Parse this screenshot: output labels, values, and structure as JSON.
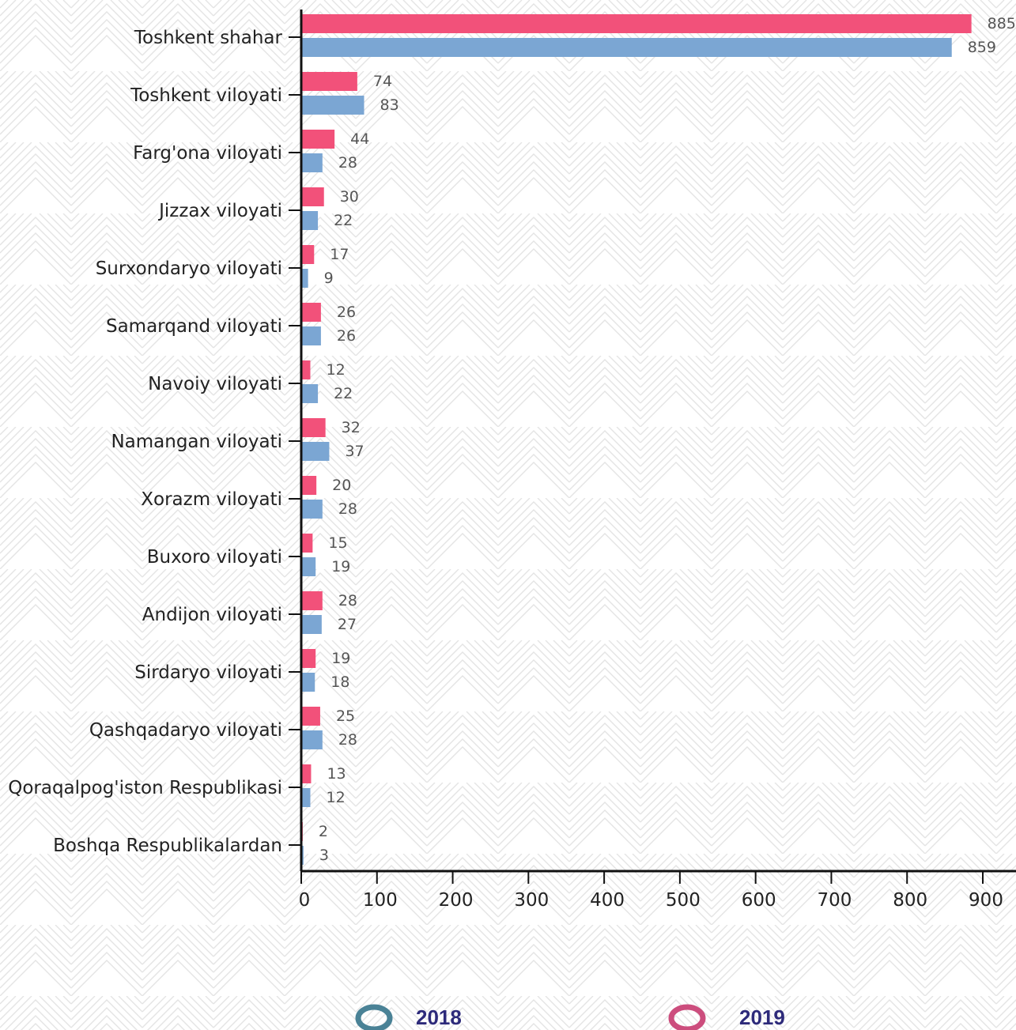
{
  "chart_data": {
    "type": "bar",
    "orientation": "horizontal",
    "categories": [
      "Toshkent shahar",
      "Toshkent viloyati",
      "Farg'ona viloyati",
      "Jizzax viloyati",
      "Surxondaryo viloyati",
      "Samarqand viloyati",
      "Navoiy viloyati",
      "Namangan viloyati",
      "Xorazm viloyati",
      "Buxoro viloyati",
      "Andijon viloyati",
      "Sirdaryo viloyati",
      "Qashqadaryo viloyati",
      "Qoraqalpog'iston Respublikasi",
      "Boshqa Respublikalardan"
    ],
    "series": [
      {
        "name": "2019",
        "color": "#f2517a",
        "values": [
          885,
          74,
          44,
          30,
          17,
          26,
          12,
          32,
          20,
          15,
          28,
          19,
          25,
          13,
          2
        ]
      },
      {
        "name": "2018",
        "color": "#7ba6d3",
        "values": [
          859,
          83,
          28,
          22,
          9,
          26,
          22,
          37,
          28,
          19,
          27,
          18,
          28,
          12,
          3
        ]
      }
    ],
    "xlim": [
      0,
      900
    ],
    "xticks": [
      0,
      100,
      200,
      300,
      400,
      500,
      600,
      700,
      800,
      900
    ],
    "title": "",
    "xlabel": "",
    "ylabel": "",
    "grid": false,
    "legend": {
      "placement": "bottom",
      "items": [
        {
          "label": "2018",
          "color": "#4a8296"
        },
        {
          "label": "2019",
          "color": "#cc4d7d"
        }
      ]
    }
  }
}
